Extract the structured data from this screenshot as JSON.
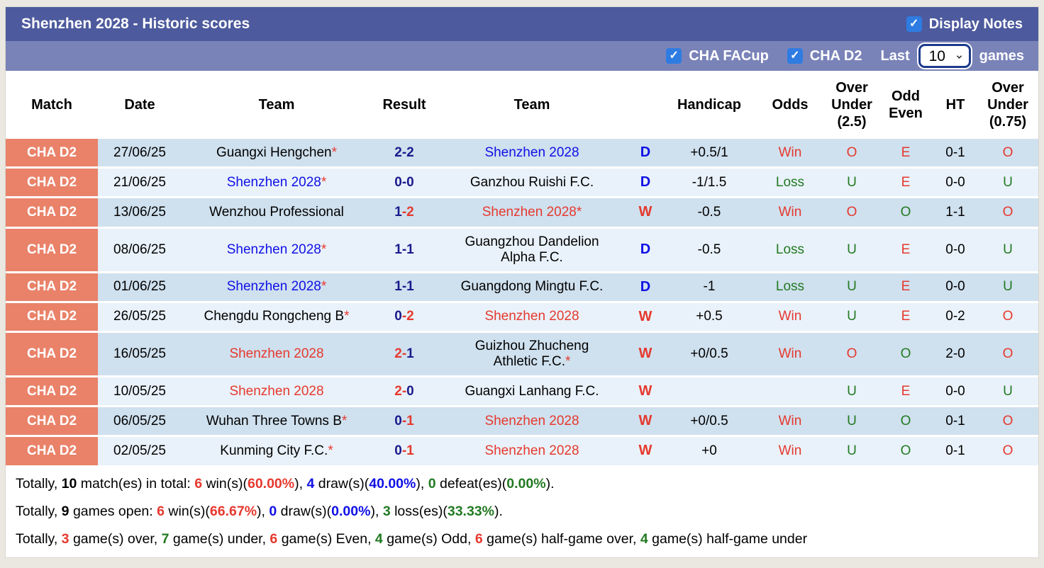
{
  "header": {
    "title": "Shenzhen 2028 - Historic scores",
    "display_notes_label": "Display Notes",
    "display_notes_checked": true
  },
  "filters": {
    "checkboxes": [
      {
        "label": "CHA FACup",
        "checked": true
      },
      {
        "label": "CHA D2",
        "checked": true
      }
    ],
    "last_label": "Last",
    "last_games_value": "10",
    "games_label": "games"
  },
  "icons": {
    "checkmark": "✓",
    "chevron_down": "⌄"
  },
  "colors": {
    "header_bar": "#4d5a9d",
    "sub_bar": "#7a83b8",
    "badge": "#e98269",
    "checkbox_blue": "#2e7ce2",
    "row_dark": "#cfe0ee",
    "row_light": "#e9f2fa",
    "red": "#e6392e",
    "blue": "#1010e6",
    "navy": "#1a1a8c",
    "green": "#227a22",
    "select_border": "#1c3a8c"
  },
  "table": {
    "columns": [
      "Match",
      "Date",
      "Team",
      "Result",
      "Team",
      "",
      "Handicap",
      "Odds",
      "Over Under (2.5)",
      "Odd Even",
      "HT",
      "Over Under (0.75)"
    ],
    "rows": [
      {
        "league": "CHA D2",
        "date": "27/06/25",
        "home": {
          "name": "Guangxi Hengchen",
          "star": true,
          "color": "black"
        },
        "result": {
          "home": "2",
          "away": "2",
          "home_color": "navy",
          "dash_color": "navy",
          "away_color": "navy"
        },
        "away": {
          "name": "Shenzhen 2028",
          "star": false,
          "color": "blue"
        },
        "wdl": {
          "text": "D",
          "color": "blue"
        },
        "handicap": "+0.5/1",
        "odds": {
          "text": "Win",
          "color": "red"
        },
        "ou25": {
          "text": "O",
          "color": "red"
        },
        "oddeven": {
          "text": "E",
          "color": "red"
        },
        "ht": "0-1",
        "ou075": {
          "text": "O",
          "color": "red"
        }
      },
      {
        "league": "CHA D2",
        "date": "21/06/25",
        "home": {
          "name": "Shenzhen 2028",
          "star": true,
          "color": "blue"
        },
        "result": {
          "home": "0",
          "away": "0",
          "home_color": "navy",
          "dash_color": "navy",
          "away_color": "navy"
        },
        "away": {
          "name": "Ganzhou Ruishi F.C.",
          "star": false,
          "color": "black"
        },
        "wdl": {
          "text": "D",
          "color": "blue"
        },
        "handicap": "-1/1.5",
        "odds": {
          "text": "Loss",
          "color": "green"
        },
        "ou25": {
          "text": "U",
          "color": "green"
        },
        "oddeven": {
          "text": "E",
          "color": "red"
        },
        "ht": "0-0",
        "ou075": {
          "text": "U",
          "color": "green"
        }
      },
      {
        "league": "CHA D2",
        "date": "13/06/25",
        "home": {
          "name": "Wenzhou Professional",
          "star": false,
          "color": "black"
        },
        "result": {
          "home": "1",
          "away": "2",
          "home_color": "navy",
          "dash_color": "red",
          "away_color": "red"
        },
        "away": {
          "name": "Shenzhen 2028",
          "star": true,
          "color": "red"
        },
        "wdl": {
          "text": "W",
          "color": "red"
        },
        "handicap": "-0.5",
        "odds": {
          "text": "Win",
          "color": "red"
        },
        "ou25": {
          "text": "O",
          "color": "red"
        },
        "oddeven": {
          "text": "O",
          "color": "green"
        },
        "ht": "1-1",
        "ou075": {
          "text": "O",
          "color": "red"
        }
      },
      {
        "league": "CHA D2",
        "date": "08/06/25",
        "home": {
          "name": "Shenzhen 2028",
          "star": true,
          "color": "blue"
        },
        "result": {
          "home": "1",
          "away": "1",
          "home_color": "navy",
          "dash_color": "navy",
          "away_color": "navy"
        },
        "away": {
          "name": "Guangzhou Dandelion Alpha F.C.",
          "star": false,
          "color": "black"
        },
        "wdl": {
          "text": "D",
          "color": "blue"
        },
        "handicap": "-0.5",
        "odds": {
          "text": "Loss",
          "color": "green"
        },
        "ou25": {
          "text": "U",
          "color": "green"
        },
        "oddeven": {
          "text": "E",
          "color": "red"
        },
        "ht": "0-0",
        "ou075": {
          "text": "U",
          "color": "green"
        }
      },
      {
        "league": "CHA D2",
        "date": "01/06/25",
        "home": {
          "name": "Shenzhen 2028",
          "star": true,
          "color": "blue"
        },
        "result": {
          "home": "1",
          "away": "1",
          "home_color": "navy",
          "dash_color": "navy",
          "away_color": "navy"
        },
        "away": {
          "name": "Guangdong Mingtu F.C.",
          "star": false,
          "color": "black"
        },
        "wdl": {
          "text": "D",
          "color": "blue"
        },
        "handicap": "-1",
        "odds": {
          "text": "Loss",
          "color": "green"
        },
        "ou25": {
          "text": "U",
          "color": "green"
        },
        "oddeven": {
          "text": "E",
          "color": "red"
        },
        "ht": "0-0",
        "ou075": {
          "text": "U",
          "color": "green"
        }
      },
      {
        "league": "CHA D2",
        "date": "26/05/25",
        "home": {
          "name": "Chengdu Rongcheng B",
          "star": true,
          "color": "black"
        },
        "result": {
          "home": "0",
          "away": "2",
          "home_color": "navy",
          "dash_color": "red",
          "away_color": "red"
        },
        "away": {
          "name": "Shenzhen 2028",
          "star": false,
          "color": "red"
        },
        "wdl": {
          "text": "W",
          "color": "red"
        },
        "handicap": "+0.5",
        "odds": {
          "text": "Win",
          "color": "red"
        },
        "ou25": {
          "text": "U",
          "color": "green"
        },
        "oddeven": {
          "text": "E",
          "color": "red"
        },
        "ht": "0-2",
        "ou075": {
          "text": "O",
          "color": "red"
        }
      },
      {
        "league": "CHA D2",
        "date": "16/05/25",
        "home": {
          "name": "Shenzhen 2028",
          "star": false,
          "color": "red"
        },
        "result": {
          "home": "2",
          "away": "1",
          "home_color": "red",
          "dash_color": "red",
          "away_color": "navy"
        },
        "away": {
          "name": "Guizhou Zhucheng Athletic F.C.",
          "star": true,
          "color": "black"
        },
        "wdl": {
          "text": "W",
          "color": "red"
        },
        "handicap": "+0/0.5",
        "odds": {
          "text": "Win",
          "color": "red"
        },
        "ou25": {
          "text": "O",
          "color": "red"
        },
        "oddeven": {
          "text": "O",
          "color": "green"
        },
        "ht": "2-0",
        "ou075": {
          "text": "O",
          "color": "red"
        }
      },
      {
        "league": "CHA D2",
        "date": "10/05/25",
        "home": {
          "name": "Shenzhen 2028",
          "star": false,
          "color": "red"
        },
        "result": {
          "home": "2",
          "away": "0",
          "home_color": "red",
          "dash_color": "red",
          "away_color": "navy"
        },
        "away": {
          "name": "Guangxi Lanhang F.C.",
          "star": false,
          "color": "black"
        },
        "wdl": {
          "text": "W",
          "color": "red"
        },
        "handicap": "",
        "odds": {
          "text": "",
          "color": "black"
        },
        "ou25": {
          "text": "U",
          "color": "green"
        },
        "oddeven": {
          "text": "E",
          "color": "red"
        },
        "ht": "0-0",
        "ou075": {
          "text": "U",
          "color": "green"
        }
      },
      {
        "league": "CHA D2",
        "date": "06/05/25",
        "home": {
          "name": "Wuhan Three Towns B",
          "star": true,
          "color": "black"
        },
        "result": {
          "home": "0",
          "away": "1",
          "home_color": "navy",
          "dash_color": "red",
          "away_color": "red"
        },
        "away": {
          "name": "Shenzhen 2028",
          "star": false,
          "color": "red"
        },
        "wdl": {
          "text": "W",
          "color": "red"
        },
        "handicap": "+0/0.5",
        "odds": {
          "text": "Win",
          "color": "red"
        },
        "ou25": {
          "text": "U",
          "color": "green"
        },
        "oddeven": {
          "text": "O",
          "color": "green"
        },
        "ht": "0-1",
        "ou075": {
          "text": "O",
          "color": "red"
        }
      },
      {
        "league": "CHA D2",
        "date": "02/05/25",
        "home": {
          "name": "Kunming City F.C.",
          "star": true,
          "color": "black"
        },
        "result": {
          "home": "0",
          "away": "1",
          "home_color": "navy",
          "dash_color": "red",
          "away_color": "red"
        },
        "away": {
          "name": "Shenzhen 2028",
          "star": false,
          "color": "red"
        },
        "wdl": {
          "text": "W",
          "color": "red"
        },
        "handicap": "+0",
        "odds": {
          "text": "Win",
          "color": "red"
        },
        "ou25": {
          "text": "U",
          "color": "green"
        },
        "oddeven": {
          "text": "O",
          "color": "green"
        },
        "ht": "0-1",
        "ou075": {
          "text": "O",
          "color": "red"
        }
      }
    ]
  },
  "summary": {
    "lines": [
      [
        {
          "t": "Totally, "
        },
        {
          "t": "10",
          "b": true
        },
        {
          "t": " match(es) in total: "
        },
        {
          "t": "6",
          "c": "red",
          "b": true
        },
        {
          "t": " win(s)("
        },
        {
          "t": "60.00%",
          "c": "red",
          "b": true
        },
        {
          "t": "), "
        },
        {
          "t": "4",
          "c": "blue",
          "b": true
        },
        {
          "t": " draw(s)("
        },
        {
          "t": "40.00%",
          "c": "blue",
          "b": true
        },
        {
          "t": "), "
        },
        {
          "t": "0",
          "c": "green",
          "b": true
        },
        {
          "t": " defeat(es)("
        },
        {
          "t": "0.00%",
          "c": "green",
          "b": true
        },
        {
          "t": ")."
        }
      ],
      [
        {
          "t": "Totally, "
        },
        {
          "t": "9",
          "b": true
        },
        {
          "t": " games open: "
        },
        {
          "t": "6",
          "c": "red",
          "b": true
        },
        {
          "t": " win(s)("
        },
        {
          "t": "66.67%",
          "c": "red",
          "b": true
        },
        {
          "t": "), "
        },
        {
          "t": "0",
          "c": "blue",
          "b": true
        },
        {
          "t": " draw(s)("
        },
        {
          "t": "0.00%",
          "c": "blue",
          "b": true
        },
        {
          "t": "), "
        },
        {
          "t": "3",
          "c": "green",
          "b": true
        },
        {
          "t": " loss(es)("
        },
        {
          "t": "33.33%",
          "c": "green",
          "b": true
        },
        {
          "t": ")."
        }
      ],
      [
        {
          "t": "Totally, "
        },
        {
          "t": "3",
          "c": "red",
          "b": true
        },
        {
          "t": " game(s) over, "
        },
        {
          "t": "7",
          "c": "green",
          "b": true
        },
        {
          "t": " game(s) under, "
        },
        {
          "t": "6",
          "c": "red",
          "b": true
        },
        {
          "t": " game(s) Even, "
        },
        {
          "t": "4",
          "c": "green",
          "b": true
        },
        {
          "t": " game(s) Odd, "
        },
        {
          "t": "6",
          "c": "red",
          "b": true
        },
        {
          "t": " game(s) half-game over, "
        },
        {
          "t": "4",
          "c": "green",
          "b": true
        },
        {
          "t": " game(s) half-game under"
        }
      ]
    ]
  }
}
